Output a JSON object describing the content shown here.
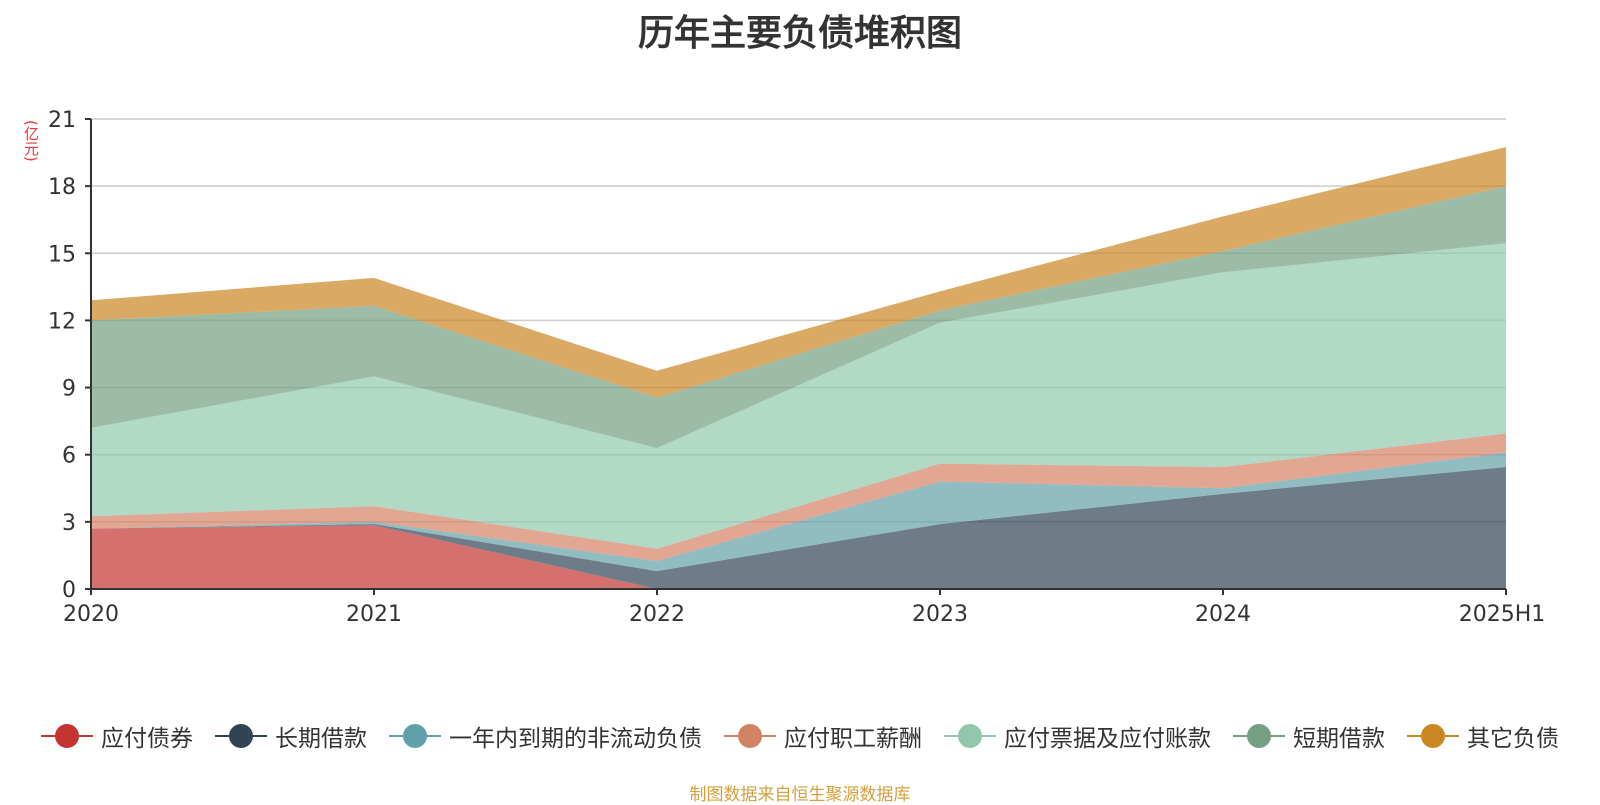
{
  "chart_data": {
    "type": "area",
    "stacked": true,
    "title": "历年主要负债堆积图",
    "unit_label": "(亿元)",
    "categories": [
      "2020",
      "2021",
      "2022",
      "2023",
      "2024",
      "2025H1"
    ],
    "ylim": [
      0,
      21
    ],
    "yticks": [
      "0",
      "3",
      "6",
      "9",
      "12",
      "15",
      "18",
      "21"
    ],
    "grid": true,
    "legend_position": "bottom",
    "series": [
      {
        "name": "应付债券",
        "color": "#c23531",
        "values": [
          2.7,
          2.85,
          0.0,
          0.0,
          0.0,
          0.0
        ]
      },
      {
        "name": "长期借款",
        "color": "#2f4554",
        "values": [
          0.0,
          0.05,
          0.8,
          2.9,
          4.25,
          5.45
        ]
      },
      {
        "name": "一年内到期的非流动负债",
        "color": "#61a0a8",
        "values": [
          0.0,
          0.1,
          0.45,
          1.9,
          0.25,
          0.65
        ]
      },
      {
        "name": "应付职工薪酬",
        "color": "#d48265",
        "values": [
          0.55,
          0.7,
          0.55,
          0.8,
          0.95,
          0.85
        ]
      },
      {
        "name": "应付票据及应付账款",
        "color": "#91c7ae",
        "values": [
          3.95,
          5.8,
          4.5,
          6.3,
          8.7,
          8.5
        ]
      },
      {
        "name": "短期借款",
        "color": "#749f83",
        "values": [
          4.8,
          3.15,
          2.25,
          0.55,
          0.95,
          2.55
        ]
      },
      {
        "name": "其它负债",
        "color": "#ca8622",
        "values": [
          0.9,
          1.25,
          1.2,
          0.85,
          1.55,
          1.75
        ]
      }
    ]
  },
  "source_note": "制图数据来自恒生聚源数据库"
}
